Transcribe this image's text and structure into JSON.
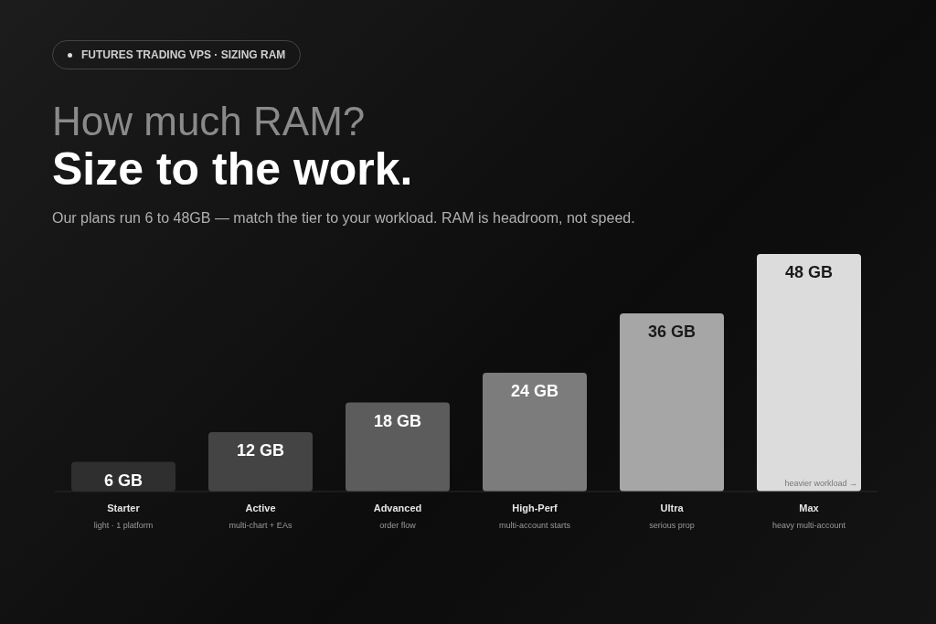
{
  "chart_data": {
    "type": "bar",
    "title": "How much RAM?",
    "subtitle": "Size to the work.",
    "annotations": [
      "FUTURES TRADING VPS · SIZING RAM",
      "Our plans run 6 to 48GB — match the tier to your workload. RAM is headroom, not speed.",
      "heavier workload →"
    ],
    "categories": [
      "Starter\nlight · 1 platform",
      "Active\nmulti-chart + EAs",
      "Advanced\norder flow",
      "High-Perf\nmulti-account starts",
      "Ultra\nserious prop",
      "Max\nheavy multi-account"
    ],
    "values": [
      6,
      12,
      18,
      24,
      36,
      48
    ],
    "value_labels": [
      "6 GB",
      "12 GB",
      "18 GB",
      "24 GB",
      "36 GB",
      "48 GB"
    ],
    "colors": [
      "#2f2f2f",
      "#444444",
      "#5c5c5c",
      "#7c7c7c",
      "#a6a6a6",
      "#dcdcdc"
    ],
    "grid": false,
    "legend": false
  }
}
